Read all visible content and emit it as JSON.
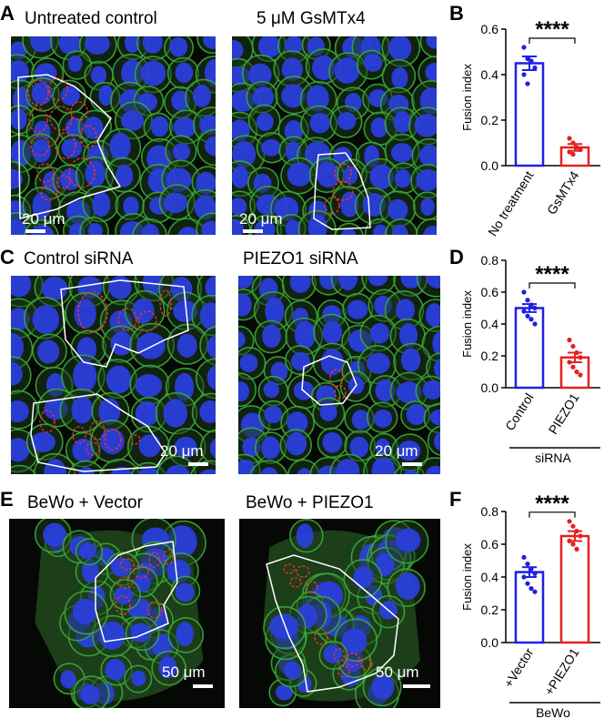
{
  "panels": {
    "A": {
      "label": "A",
      "left_title": "Untreated control",
      "right_title": "5 μM GsMTx4",
      "left_scale": "20 μm",
      "right_scale": "20 μm"
    },
    "B": {
      "label": "B"
    },
    "C": {
      "label": "C",
      "left_title": "Control siRNA",
      "right_title": "PIEZO1 siRNA",
      "left_scale": "20 μm",
      "right_scale": "20 μm"
    },
    "D": {
      "label": "D"
    },
    "E": {
      "label": "E",
      "left_title": "BeWo + Vector",
      "right_title": "BeWo + PIEZO1",
      "left_scale": "50 μm",
      "right_scale": "50 μm"
    },
    "F": {
      "label": "F"
    }
  },
  "colors": {
    "control": "#1f1fe6",
    "treatment": "#e62020",
    "membrane": "#3aa83a",
    "nucleus": "#2a3fe0"
  },
  "chart_data": [
    {
      "panel": "B",
      "type": "bar",
      "categories": [
        "No treatment",
        "GsMTx4"
      ],
      "values": [
        0.45,
        0.08
      ],
      "errors": [
        0.03,
        0.015
      ],
      "points": [
        [
          0.52,
          0.47,
          0.46,
          0.43,
          0.4,
          0.36
        ],
        [
          0.12,
          0.1,
          0.08,
          0.07,
          0.06,
          0.05
        ]
      ],
      "ylabel": "Fusion index",
      "ylim": [
        0,
        0.6
      ],
      "yticks": [
        "0.0",
        "0.2",
        "0.4",
        "0.6"
      ],
      "significance": "****",
      "group_label": ""
    },
    {
      "panel": "D",
      "type": "bar",
      "categories": [
        "Control",
        "PIEZO1"
      ],
      "values": [
        0.5,
        0.19
      ],
      "errors": [
        0.025,
        0.03
      ],
      "points": [
        [
          0.6,
          0.55,
          0.52,
          0.5,
          0.48,
          0.45,
          0.43,
          0.4
        ],
        [
          0.3,
          0.26,
          0.22,
          0.19,
          0.16,
          0.13,
          0.1,
          0.08
        ]
      ],
      "ylabel": "Fusion index",
      "ylim": [
        0,
        0.8
      ],
      "yticks": [
        "0.0",
        "0.2",
        "0.4",
        "0.6",
        "0.8"
      ],
      "significance": "****",
      "group_label": "siRNA"
    },
    {
      "panel": "F",
      "type": "bar",
      "categories": [
        "+Vector",
        "+PIEZO1"
      ],
      "values": [
        0.43,
        0.65
      ],
      "errors": [
        0.03,
        0.03
      ],
      "points": [
        [
          0.52,
          0.48,
          0.45,
          0.42,
          0.4,
          0.36,
          0.33,
          0.31
        ],
        [
          0.74,
          0.71,
          0.68,
          0.65,
          0.62,
          0.6,
          0.57
        ]
      ],
      "ylabel": "Fusion index",
      "ylim": [
        0,
        0.8
      ],
      "yticks": [
        "0.0",
        "0.2",
        "0.4",
        "0.6",
        "0.8"
      ],
      "significance": "****",
      "group_label": "BeWo"
    }
  ]
}
